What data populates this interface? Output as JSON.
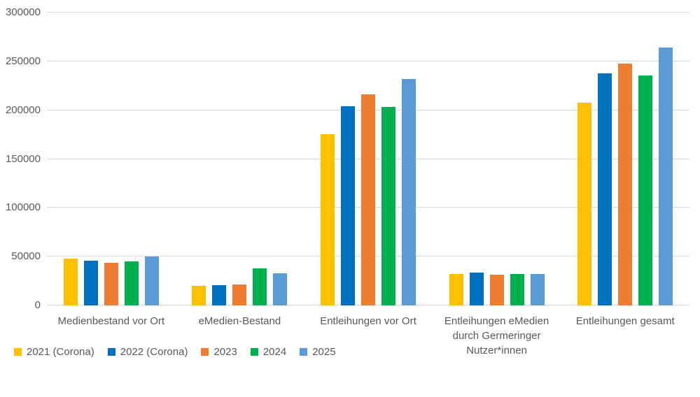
{
  "chart_data": {
    "type": "bar",
    "title": "",
    "xlabel": "",
    "ylabel": "",
    "grid": true,
    "legend_position": "bottom-left",
    "ylim": [
      0,
      300000
    ],
    "ytick_interval": 50000,
    "yticks": [
      0,
      50000,
      100000,
      150000,
      200000,
      250000,
      300000
    ],
    "ytick_labels": [
      "0",
      "50000",
      "100000",
      "150000",
      "200000",
      "250000",
      "300000"
    ],
    "categories": [
      "Medienbestand vor Ort",
      "eMedien-Bestand",
      "Entleihungen vor Ort",
      "Entleihungen eMedien durch Germeringer Nutzer*innen",
      "Entleihungen gesamt"
    ],
    "category_label_lines": [
      [
        "Medienbestand vor Ort"
      ],
      [
        "eMedien-Bestand"
      ],
      [
        "Entleihungen vor Ort"
      ],
      [
        "Entleihungen eMedien",
        "durch Germeringer",
        "Nutzer*innen"
      ],
      [
        "Entleihungen gesamt"
      ]
    ],
    "series": [
      {
        "name": "2021 (Corona)",
        "color": "#FFC000",
        "values": [
          48000,
          20000,
          175500,
          32000,
          207500
        ]
      },
      {
        "name": "2022 (Corona)",
        "color": "#0070C0",
        "values": [
          46000,
          21000,
          204000,
          34000,
          238000
        ]
      },
      {
        "name": "2023",
        "color": "#ED7D31",
        "values": [
          43500,
          21500,
          216000,
          31500,
          247500
        ]
      },
      {
        "name": "2024",
        "color": "#00B050",
        "values": [
          45000,
          38000,
          203000,
          32500,
          235500
        ]
      },
      {
        "name": "2025",
        "color": "#5B9BD5",
        "values": [
          50000,
          33000,
          232000,
          32500,
          264500
        ]
      }
    ]
  },
  "colors": {
    "background": "#FFFFFF",
    "gridline": "#D9D9D9",
    "axis_text": "#595959"
  }
}
